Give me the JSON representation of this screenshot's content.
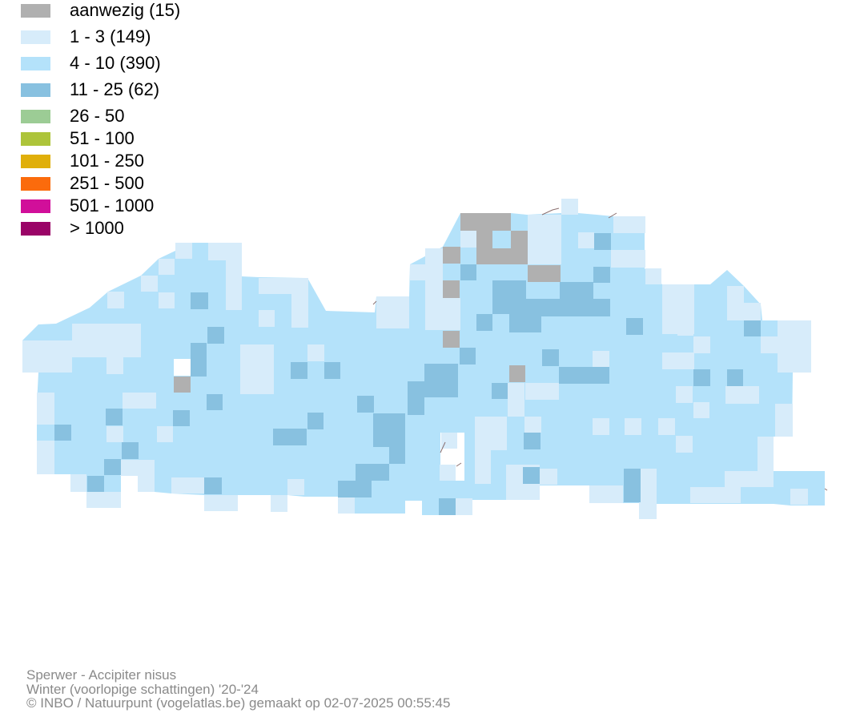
{
  "legend": [
    {
      "label": "aanwezig (15)",
      "color": "#b0b0b0"
    },
    {
      "label": "1 - 3 (149)",
      "color": "#d7ecfa"
    },
    {
      "label": "4 - 10 (390)",
      "color": "#b4e2fa"
    },
    {
      "label": "11 - 25 (62)",
      "color": "#88c1e0"
    },
    {
      "label": "26 - 50",
      "color": "#9ccc95"
    },
    {
      "label": "51 - 100",
      "color": "#adc43a"
    },
    {
      "label": "101 - 250",
      "color": "#e0af0a"
    },
    {
      "label": "251 - 500",
      "color": "#fb6b0c"
    },
    {
      "label": "501 - 1000",
      "color": "#d10f9a"
    },
    {
      "label": "> 1000",
      "color": "#9a0467"
    }
  ],
  "footer": {
    "species": "Sperwer - Accipiter nisus",
    "period": "Winter (voorlopige schattingen) '20-'24",
    "credit": "© INBO / Natuurpunt (vogelatlas.be) gemaakt op 02-07-2025 00:55:45"
  }
}
